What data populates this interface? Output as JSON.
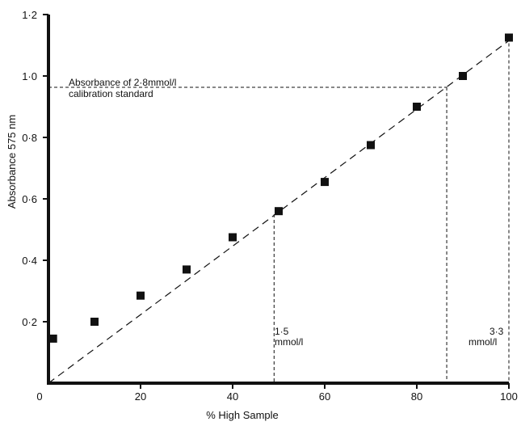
{
  "chart_data": {
    "type": "scatter",
    "title": "",
    "xlabel": "% High Sample",
    "ylabel": "Absorbance 575 nm",
    "xlim": [
      0,
      100
    ],
    "ylim": [
      0,
      1.2
    ],
    "x_ticks": [
      0,
      20,
      40,
      60,
      80,
      100
    ],
    "x_tick_labels": [
      "0",
      "20",
      "40",
      "60",
      "80",
      "100"
    ],
    "y_ticks": [
      0.2,
      0.4,
      0.6,
      0.8,
      1.0,
      1.2
    ],
    "y_tick_labels": [
      "0·2",
      "0·4",
      "0·6",
      "0·8",
      "1·0",
      "1·2"
    ],
    "grid": false,
    "series": [
      {
        "x": [
          1,
          10,
          20,
          30,
          40,
          50,
          60,
          70,
          80,
          90,
          100
        ],
        "y": [
          0.145,
          0.2,
          0.285,
          0.37,
          0.475,
          0.56,
          0.655,
          0.775,
          0.9,
          1.0,
          1.125
        ]
      }
    ],
    "fit_line": {
      "x": [
        0,
        100
      ],
      "y": [
        0,
        1.115
      ]
    },
    "reference_lines": {
      "calibration_absorbance": 0.963,
      "calibration_x": 86.5,
      "low_x": 49,
      "low_y": 0.55,
      "high_x": 100,
      "high_y": 1.125
    },
    "annotations": {
      "calibration_line1": "Absorbance of 2·8mmol/l",
      "calibration_line2": "calibration standard",
      "low_value": "1·5",
      "low_unit": "mmol/l",
      "high_value": "3·3",
      "high_unit": "mmol/l"
    }
  }
}
